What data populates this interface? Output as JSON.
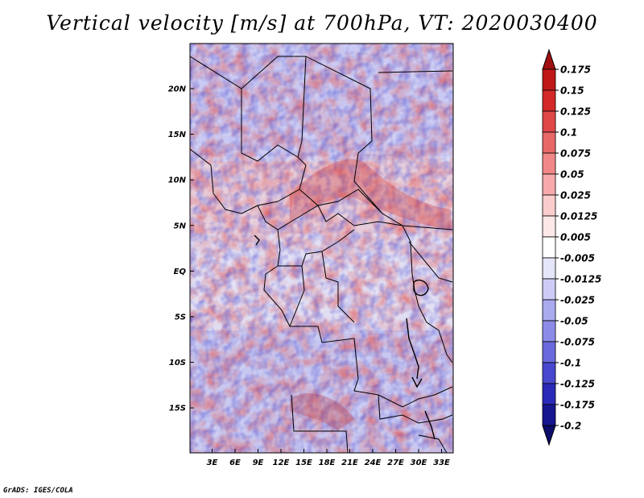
{
  "title": "Vertical velocity [m/s] at 700hPa, VT: 2020030400",
  "credit": "GrADS: IGES/COLA",
  "map": {
    "lat_labels": [
      "20N",
      "15N",
      "10N",
      "5N",
      "EQ",
      "5S",
      "10S",
      "15S"
    ],
    "lon_labels": [
      "3E",
      "6E",
      "9E",
      "12E",
      "15E",
      "18E",
      "21E",
      "24E",
      "27E",
      "30E",
      "33E"
    ]
  },
  "colorbar": {
    "labels": [
      "0.175",
      "0.15",
      "0.125",
      "0.1",
      "0.075",
      "0.05",
      "0.025",
      "0.0125",
      "0.005",
      "-0.005",
      "-0.0125",
      "-0.025",
      "-0.05",
      "-0.075",
      "-0.1",
      "-0.125",
      "-0.175",
      "-0.2"
    ],
    "colors": [
      "#a01010",
      "#c01818",
      "#d42828",
      "#e04848",
      "#e86868",
      "#f08888",
      "#f6aaaa",
      "#fbcccc",
      "#fde8e8",
      "#ffffff",
      "#e6e6fb",
      "#ccccf6",
      "#aaaaef",
      "#8c8ce8",
      "#6a6add",
      "#4848cf",
      "#2a2ab8",
      "#161690",
      "#0c0c6a"
    ]
  }
}
